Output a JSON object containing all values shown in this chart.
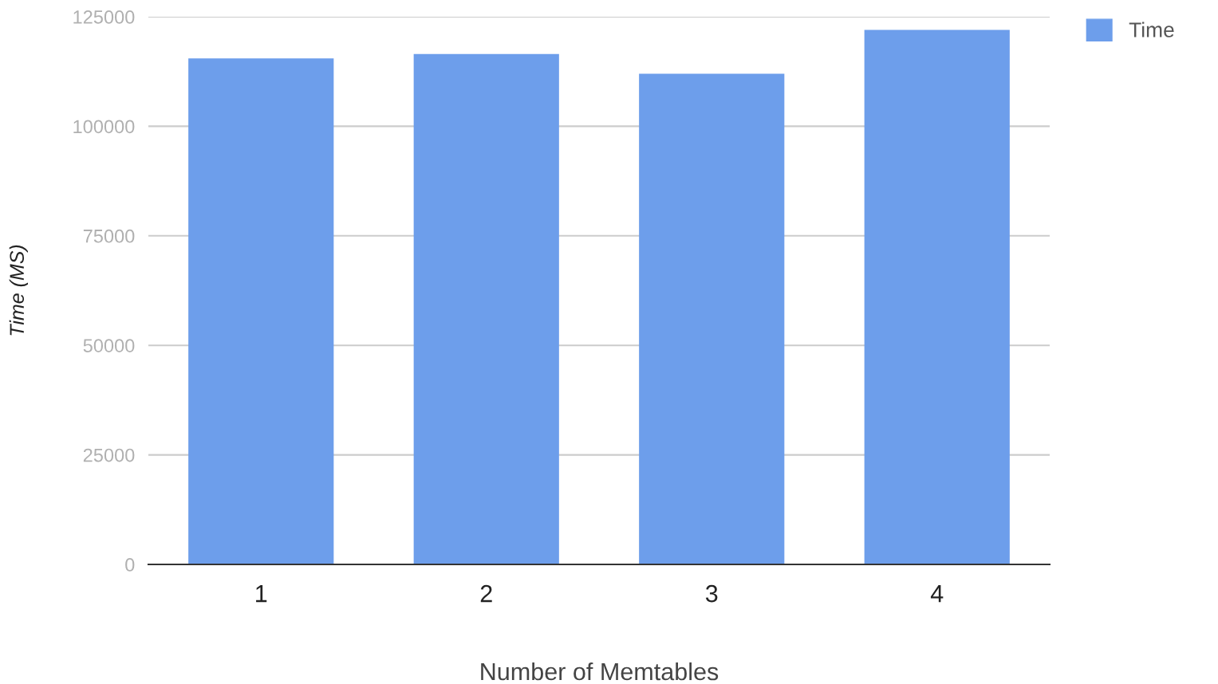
{
  "chart_data": {
    "type": "bar",
    "xlabel": "Number of Memtables",
    "ylabel": "Time (MS)",
    "categories": [
      "1",
      "2",
      "3",
      "4"
    ],
    "series": [
      {
        "name": "Time",
        "color": "#6d9eeb",
        "values": [
          115500,
          116500,
          112000,
          122000
        ]
      }
    ],
    "ylim": [
      0,
      125000
    ],
    "yticks": [
      0,
      25000,
      50000,
      75000,
      100000,
      125000
    ],
    "grid": "y",
    "legend": "top right"
  }
}
